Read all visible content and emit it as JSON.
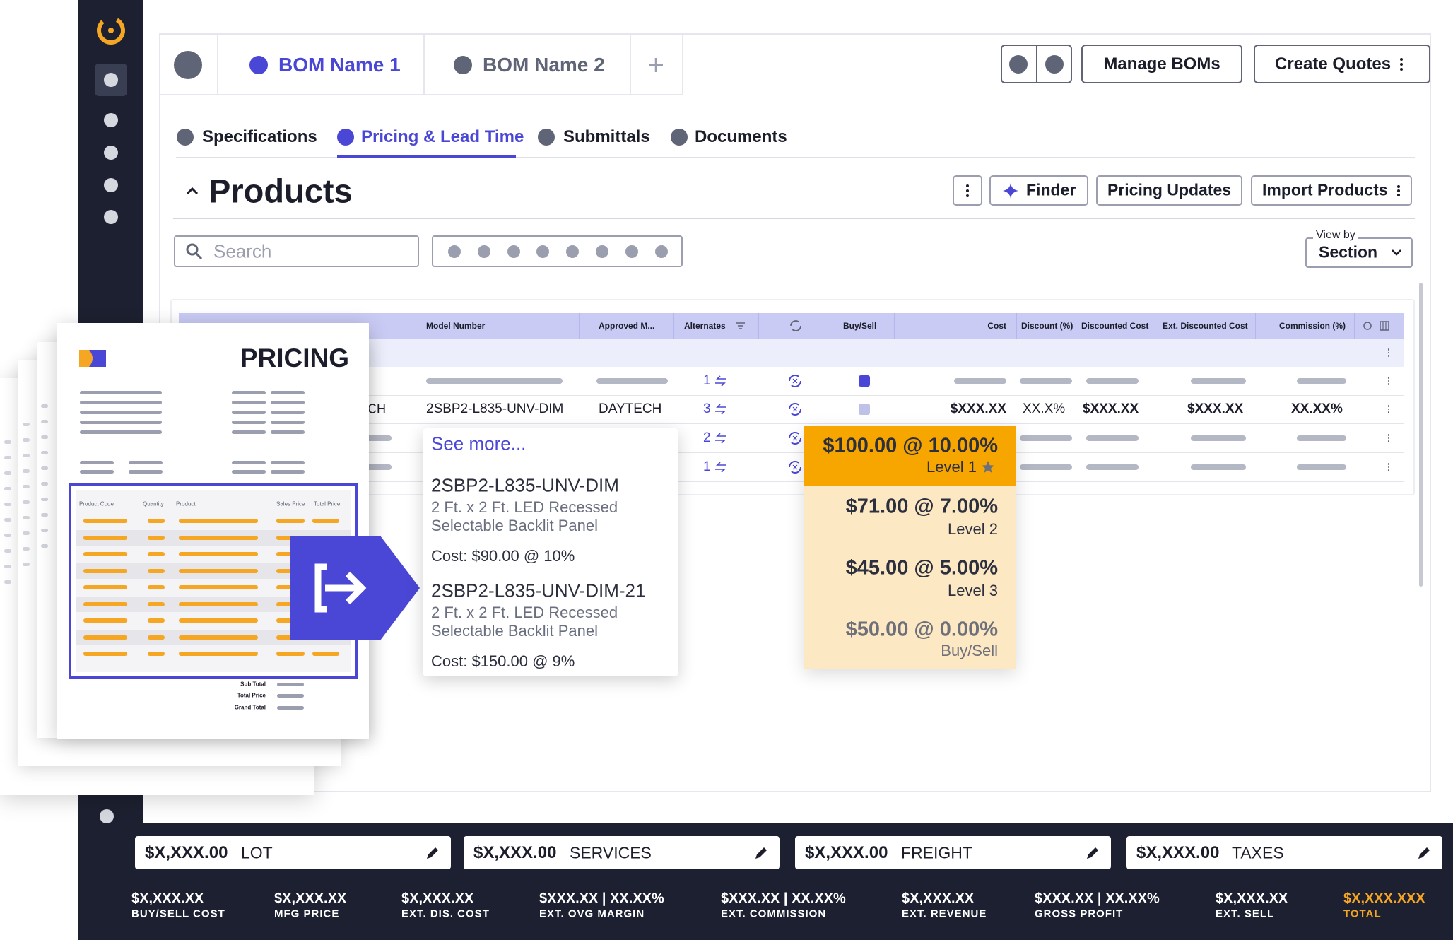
{
  "tabs": [
    "BOM Name 1",
    "BOM Name 2"
  ],
  "header_buttons": [
    "Manage BOMs",
    "Create Quotes"
  ],
  "subtabs": [
    "Specifications",
    "Pricing & Lead Time",
    "Submittals",
    "Documents"
  ],
  "section": {
    "title": "Products",
    "buttons": [
      "Finder",
      "Pricing Updates",
      "Import Products"
    ],
    "search_placeholder": "Search",
    "view_by": {
      "label": "View by",
      "value": "Section"
    }
  },
  "table": {
    "headers": [
      "Model Number",
      "Approved M...",
      "Alternates",
      "Buy/Sell",
      "Cost",
      "Discount (%)",
      "Discounted Cost",
      "Ext. Discounted Cost",
      "Commission (%)"
    ],
    "alternates": [
      1,
      3,
      2,
      1
    ],
    "row": {
      "manufacturer_fragment": "CH",
      "model": "2SBP2-L835-UNV-DIM",
      "approved": "DAYTECH",
      "cost": "$XXX.XX",
      "discount": "XX.X%",
      "discounted_cost": "$XXX.XX",
      "ext_discounted_cost": "$XXX.XX",
      "commission": "XX.XX%"
    }
  },
  "pricing_doc": {
    "title": "PRICING",
    "headers": [
      "Product Code",
      "Quantity",
      "Product",
      "Sales Price",
      "Total Price"
    ],
    "summary": [
      "Sub Total",
      "Total Price",
      "Grand Total"
    ]
  },
  "alternates_popup": {
    "see_more": "See more...",
    "items": [
      {
        "name": "2SBP2-L835-UNV-DIM",
        "description": "2 Ft. x 2 Ft. LED Recessed Selectable Backlit Panel",
        "cost": "Cost: $90.00 @ 10%"
      },
      {
        "name": "2SBP2-L835-UNV-DIM-21",
        "description": "2 Ft. x 2 Ft. LED Recessed Selectable Backlit Panel",
        "cost": "Cost: $150.00 @ 9%"
      }
    ]
  },
  "price_levels": [
    {
      "price": "$100.00 @ 10.00%",
      "level": "Level 1"
    },
    {
      "price": "$71.00 @ 7.00%",
      "level": "Level 2"
    },
    {
      "price": "$45.00 @ 5.00%",
      "level": "Level 3"
    },
    {
      "price": "$50.00 @ 0.00%",
      "level": "Buy/Sell"
    }
  ],
  "adjustments": [
    {
      "value": "$X,XXX.00",
      "label": "LOT"
    },
    {
      "value": "$X,XXX.00",
      "label": "SERVICES"
    },
    {
      "value": "$X,XXX.00",
      "label": "FREIGHT"
    },
    {
      "value": "$X,XXX.00",
      "label": "TAXES"
    }
  ],
  "totals": [
    {
      "value": "$X,XXX.XX",
      "label": "BUY/SELL COST"
    },
    {
      "value": "$X,XXX.XX",
      "label": "MFG PRICE"
    },
    {
      "value": "$X,XXX.XX",
      "label": "EXT. DIS. COST"
    },
    {
      "value": "$XXX.XX | XX.XX%",
      "label": "EXT. OVG MARGIN"
    },
    {
      "value": "$XXX.XX | XX.XX%",
      "label": "EXT. COMMISSION"
    },
    {
      "value": "$X,XXX.XX",
      "label": "EXT. REVENUE"
    },
    {
      "value": "$XXX.XX | XX.XX%",
      "label": "GROSS PROFIT"
    },
    {
      "value": "$X,XXX.XX",
      "label": "EXT. SELL"
    },
    {
      "value": "$X,XXX.XXX",
      "label": "TOTAL"
    }
  ]
}
